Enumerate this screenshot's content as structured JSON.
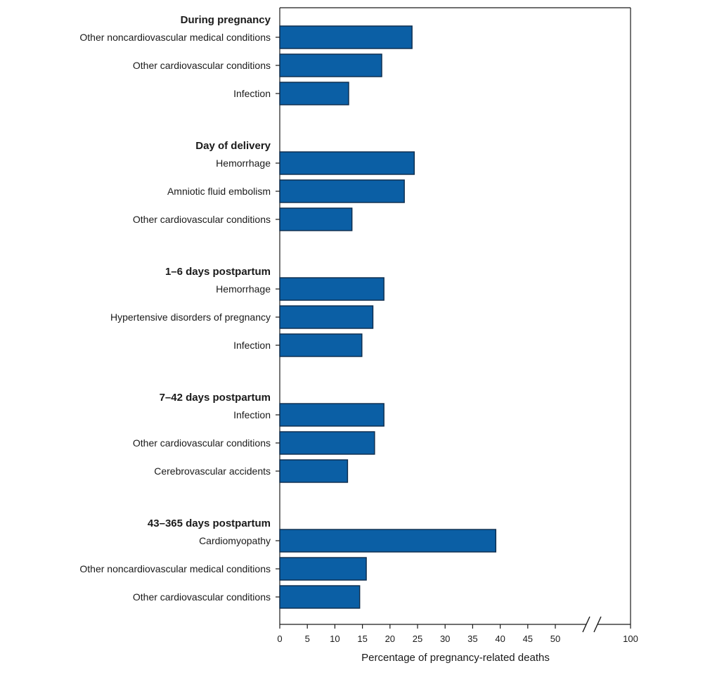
{
  "chart_data": {
    "type": "bar",
    "orientation": "horizontal",
    "title": "",
    "xlabel": "Percentage of pregnancy-related deaths",
    "ylabel": "",
    "xlim": [
      0,
      100
    ],
    "axis_break": [
      50,
      100
    ],
    "xticks": [
      0,
      5,
      10,
      15,
      20,
      25,
      30,
      35,
      40,
      45,
      50,
      100
    ],
    "grid": false,
    "legend": "none",
    "bar_color": "#0b5fa5",
    "bar_edge_color": "#0d2b4a",
    "groups": [
      {
        "label": "During pregnancy",
        "bars": [
          {
            "category": "Other noncardiovascular medical conditions",
            "value": 24.0
          },
          {
            "category": "Other cardiovascular conditions",
            "value": 18.5
          },
          {
            "category": "Infection",
            "value": 12.5
          }
        ]
      },
      {
        "label": "Day of delivery",
        "bars": [
          {
            "category": "Hemorrhage",
            "value": 24.4
          },
          {
            "category": "Amniotic fluid embolism",
            "value": 22.6
          },
          {
            "category": "Other cardiovascular conditions",
            "value": 13.1
          }
        ]
      },
      {
        "label": "1–6 days postpartum",
        "bars": [
          {
            "category": "Hemorrhage",
            "value": 18.9
          },
          {
            "category": "Hypertensive disorders of pregnancy",
            "value": 16.9
          },
          {
            "category": "Infection",
            "value": 14.9
          }
        ]
      },
      {
        "label": "7–42 days postpartum",
        "bars": [
          {
            "category": "Infection",
            "value": 18.9
          },
          {
            "category": "Other cardiovascular conditions",
            "value": 17.2
          },
          {
            "category": "Cerebrovascular accidents",
            "value": 12.3
          }
        ]
      },
      {
        "label": "43–365 days postpartum",
        "bars": [
          {
            "category": "Cardiomyopathy",
            "value": 39.2
          },
          {
            "category": "Other noncardiovascular medical conditions",
            "value": 15.7
          },
          {
            "category": "Other cardiovascular conditions",
            "value": 14.5
          }
        ]
      }
    ]
  }
}
